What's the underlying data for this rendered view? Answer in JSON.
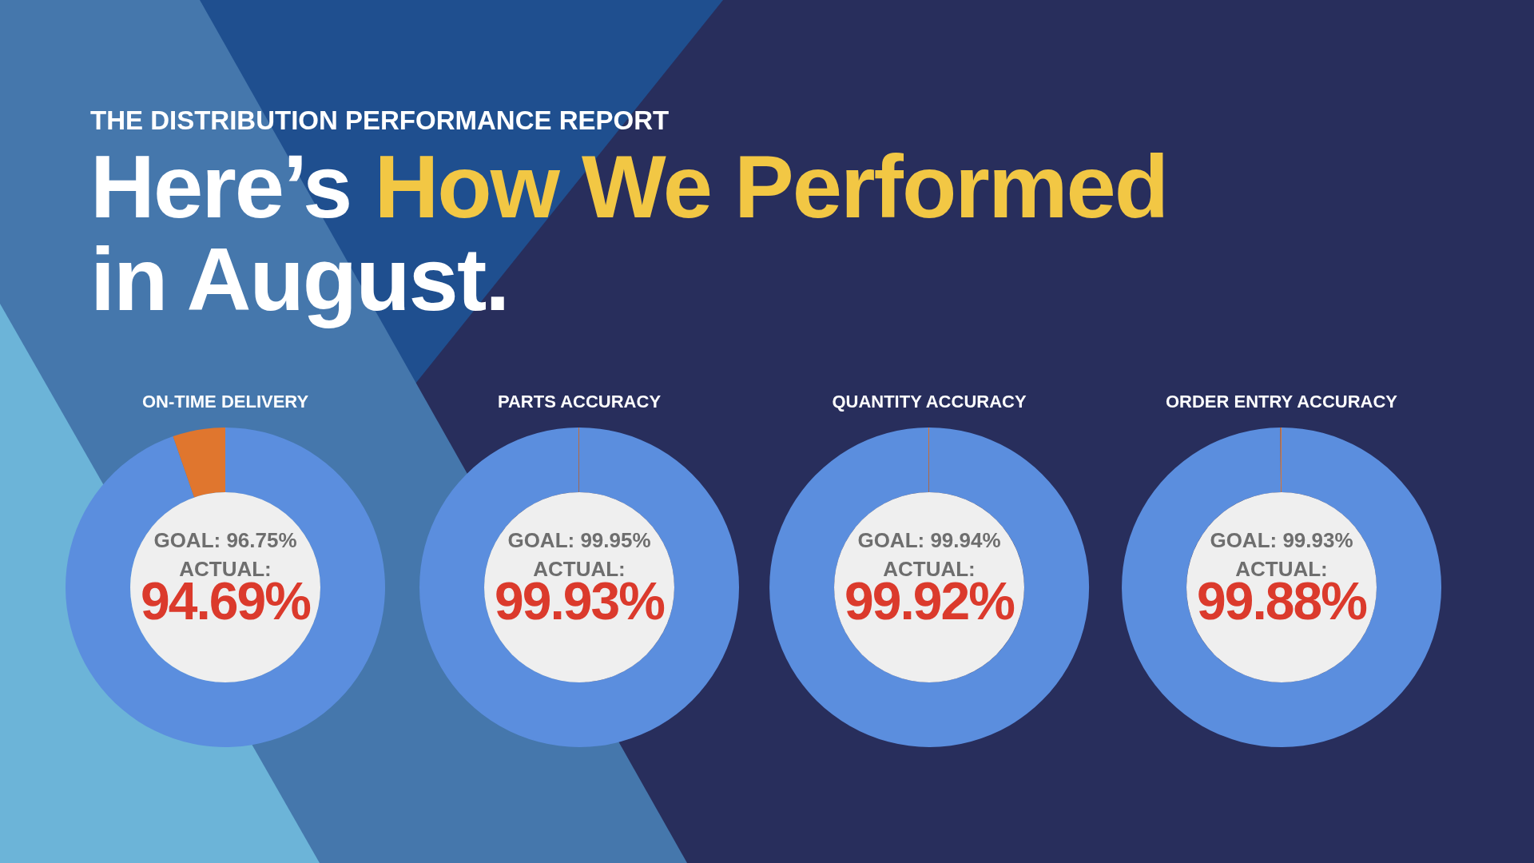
{
  "chart_data": [
    {
      "type": "other",
      "subtitle": "THE DISTRIBUTION PERFORMANCE REPORT",
      "title": "Here’s How We Performed in August."
    },
    {
      "type": "donut",
      "title": "ON-TIME DELIVERY",
      "categories": [
        null,
        null
      ],
      "values": [
        94.69,
        5.31
      ],
      "colors": [
        "#5b8ede",
        "#e0762e"
      ],
      "annotations": [
        "GOAL: 96.75%",
        "ACTUAL:",
        "94.69%"
      ]
    },
    {
      "type": "donut",
      "title": "PARTS ACCURACY",
      "categories": [
        null,
        null
      ],
      "values": [
        99.93,
        0.07
      ],
      "colors": [
        "#5b8ede",
        "#e0762e"
      ],
      "annotations": [
        "GOAL: 99.95%",
        "ACTUAL:",
        "99.93%"
      ]
    },
    {
      "type": "donut",
      "title": "QUANTITY ACCURACY",
      "categories": [
        null,
        null
      ],
      "values": [
        99.92,
        0.08
      ],
      "colors": [
        "#5b8ede",
        "#e0762e"
      ],
      "annotations": [
        "GOAL: 99.94%",
        "ACTUAL:",
        "99.92%"
      ]
    },
    {
      "type": "donut",
      "title": "ORDER ENTRY ACCURACY",
      "categories": [
        null,
        null
      ],
      "values": [
        99.88,
        0.12
      ],
      "colors": [
        "#5b8ede",
        "#e0762e"
      ],
      "annotations": [
        "GOAL: 99.93%",
        "ACTUAL:",
        "99.88%"
      ]
    }
  ]
}
